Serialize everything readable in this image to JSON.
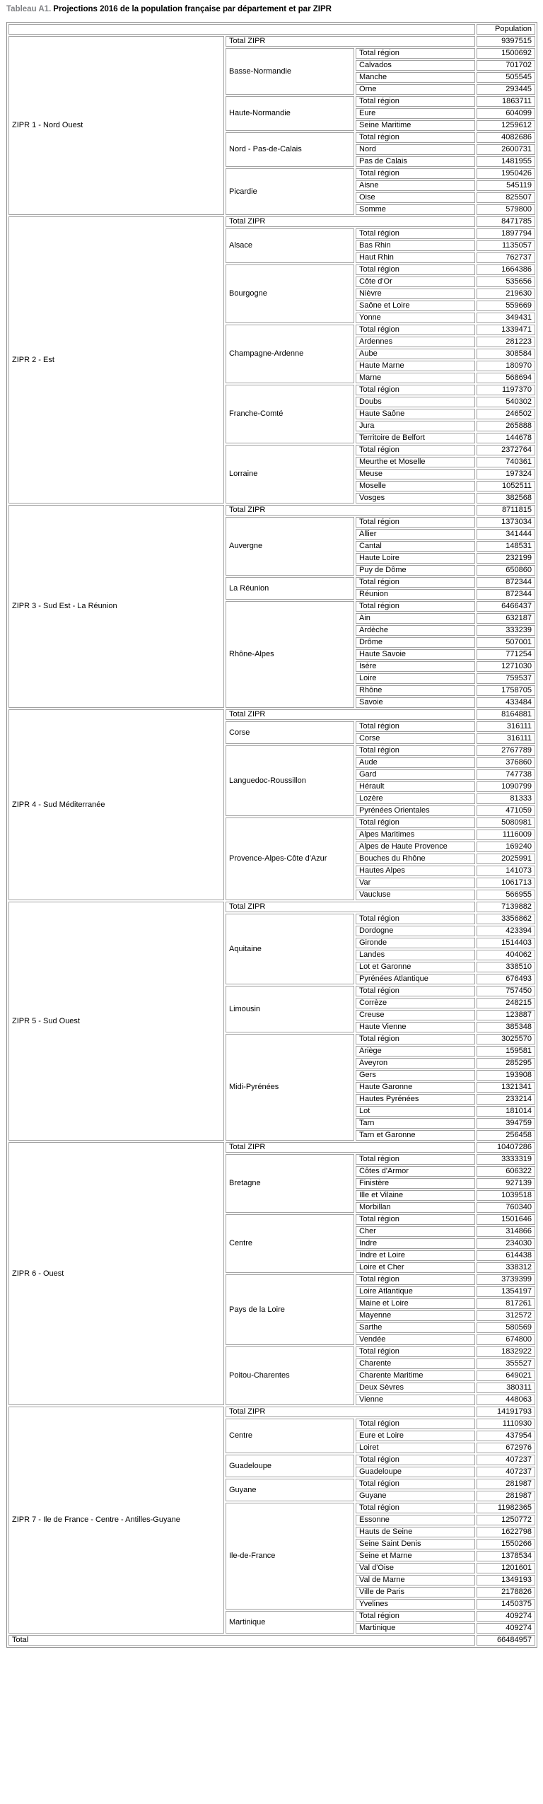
{
  "title": {
    "label": "Tableau A1.",
    "text": "Projections 2016 de la population française par département et par ZIPR"
  },
  "table": {
    "population_header": "Population",
    "total_zipr_label": "Total ZIPR",
    "total_region_label": "Total région",
    "grand_total_label": "Total",
    "grand_total_value": "66484957",
    "ziprs": [
      {
        "name": "ZIPR 1 - Nord Ouest",
        "total": "9397515",
        "regions": [
          {
            "name": "Basse-Normandie",
            "total": "1500692",
            "departments": [
              {
                "name": "Calvados",
                "value": "701702"
              },
              {
                "name": "Manche",
                "value": "505545"
              },
              {
                "name": "Orne",
                "value": "293445"
              }
            ]
          },
          {
            "name": "Haute-Normandie",
            "total": "1863711",
            "departments": [
              {
                "name": "Eure",
                "value": "604099"
              },
              {
                "name": "Seine Maritime",
                "value": "1259612"
              }
            ]
          },
          {
            "name": "Nord - Pas-de-Calais",
            "total": "4082686",
            "departments": [
              {
                "name": "Nord",
                "value": "2600731"
              },
              {
                "name": "Pas de Calais",
                "value": "1481955"
              }
            ]
          },
          {
            "name": "Picardie",
            "total": "1950426",
            "departments": [
              {
                "name": "Aisne",
                "value": "545119"
              },
              {
                "name": "Oise",
                "value": "825507"
              },
              {
                "name": "Somme",
                "value": "579800"
              }
            ]
          }
        ]
      },
      {
        "name": "ZIPR 2 - Est",
        "total": "8471785",
        "regions": [
          {
            "name": "Alsace",
            "total": "1897794",
            "departments": [
              {
                "name": "Bas Rhin",
                "value": "1135057"
              },
              {
                "name": "Haut Rhin",
                "value": "762737"
              }
            ]
          },
          {
            "name": "Bourgogne",
            "total": "1664386",
            "departments": [
              {
                "name": "Côte d'Or",
                "value": "535656"
              },
              {
                "name": "Nièvre",
                "value": "219630"
              },
              {
                "name": "Saône et Loire",
                "value": "559669"
              },
              {
                "name": "Yonne",
                "value": "349431"
              }
            ]
          },
          {
            "name": "Champagne-Ardenne",
            "total": "1339471",
            "departments": [
              {
                "name": "Ardennes",
                "value": "281223"
              },
              {
                "name": "Aube",
                "value": "308584"
              },
              {
                "name": "Haute Marne",
                "value": "180970"
              },
              {
                "name": "Marne",
                "value": "568694"
              }
            ]
          },
          {
            "name": "Franche-Comté",
            "total": "1197370",
            "departments": [
              {
                "name": "Doubs",
                "value": "540302"
              },
              {
                "name": "Haute Saône",
                "value": "246502"
              },
              {
                "name": "Jura",
                "value": "265888"
              },
              {
                "name": "Territoire de Belfort",
                "value": "144678"
              }
            ]
          },
          {
            "name": "Lorraine",
            "total": "2372764",
            "departments": [
              {
                "name": "Meurthe et Moselle",
                "value": "740361"
              },
              {
                "name": "Meuse",
                "value": "197324"
              },
              {
                "name": "Moselle",
                "value": "1052511"
              },
              {
                "name": "Vosges",
                "value": "382568"
              }
            ]
          }
        ]
      },
      {
        "name": "ZIPR 3 - Sud Est - La Réunion",
        "total": "8711815",
        "regions": [
          {
            "name": "Auvergne",
            "total": "1373034",
            "departments": [
              {
                "name": "Allier",
                "value": "341444"
              },
              {
                "name": "Cantal",
                "value": "148531"
              },
              {
                "name": "Haute Loire",
                "value": "232199"
              },
              {
                "name": "Puy de Dôme",
                "value": "650860"
              }
            ]
          },
          {
            "name": "La Réunion",
            "total": "872344",
            "departments": [
              {
                "name": "Réunion",
                "value": "872344"
              }
            ]
          },
          {
            "name": "Rhône-Alpes",
            "total": "6466437",
            "departments": [
              {
                "name": "Ain",
                "value": "632187"
              },
              {
                "name": "Ardèche",
                "value": "333239"
              },
              {
                "name": "Drôme",
                "value": "507001"
              },
              {
                "name": "Haute Savoie",
                "value": "771254"
              },
              {
                "name": "Isère",
                "value": "1271030"
              },
              {
                "name": "Loire",
                "value": "759537"
              },
              {
                "name": "Rhône",
                "value": "1758705"
              },
              {
                "name": "Savoie",
                "value": "433484"
              }
            ]
          }
        ]
      },
      {
        "name": "ZIPR 4 - Sud Méditerranée",
        "total": "8164881",
        "regions": [
          {
            "name": "Corse",
            "total": "316111",
            "departments": [
              {
                "name": "Corse",
                "value": "316111"
              }
            ]
          },
          {
            "name": "Languedoc-Roussillon",
            "total": "2767789",
            "departments": [
              {
                "name": "Aude",
                "value": "376860"
              },
              {
                "name": "Gard",
                "value": "747738"
              },
              {
                "name": "Hérault",
                "value": "1090799"
              },
              {
                "name": "Lozère",
                "value": "81333"
              },
              {
                "name": "Pyrénées Orientales",
                "value": "471059"
              }
            ]
          },
          {
            "name": "Provence-Alpes-Côte d'Azur",
            "total": "5080981",
            "departments": [
              {
                "name": "Alpes Maritimes",
                "value": "1116009"
              },
              {
                "name": "Alpes de Haute Provence",
                "value": "169240"
              },
              {
                "name": "Bouches du Rhône",
                "value": "2025991"
              },
              {
                "name": "Hautes Alpes",
                "value": "141073"
              },
              {
                "name": "Var",
                "value": "1061713"
              },
              {
                "name": "Vaucluse",
                "value": "566955"
              }
            ]
          }
        ]
      },
      {
        "name": "ZIPR 5 - Sud Ouest",
        "total": "7139882",
        "regions": [
          {
            "name": "Aquitaine",
            "total": "3356862",
            "departments": [
              {
                "name": "Dordogne",
                "value": "423394"
              },
              {
                "name": "Gironde",
                "value": "1514403"
              },
              {
                "name": "Landes",
                "value": "404062"
              },
              {
                "name": "Lot et Garonne",
                "value": "338510"
              },
              {
                "name": "Pyrénées Atlantique",
                "value": "676493"
              }
            ]
          },
          {
            "name": "Limousin",
            "total": "757450",
            "departments": [
              {
                "name": "Corrèze",
                "value": "248215"
              },
              {
                "name": "Creuse",
                "value": "123887"
              },
              {
                "name": "Haute Vienne",
                "value": "385348"
              }
            ]
          },
          {
            "name": "Midi-Pyrénées",
            "total": "3025570",
            "departments": [
              {
                "name": "Ariège",
                "value": "159581"
              },
              {
                "name": "Aveyron",
                "value": "285295"
              },
              {
                "name": "Gers",
                "value": "193908"
              },
              {
                "name": "Haute Garonne",
                "value": "1321341"
              },
              {
                "name": "Hautes Pyrénées",
                "value": "233214"
              },
              {
                "name": "Lot",
                "value": "181014"
              },
              {
                "name": "Tarn",
                "value": "394759"
              },
              {
                "name": "Tarn et Garonne",
                "value": "256458"
              }
            ]
          }
        ]
      },
      {
        "name": "ZIPR 6 - Ouest",
        "total": "10407286",
        "regions": [
          {
            "name": "Bretagne",
            "total": "3333319",
            "departments": [
              {
                "name": "Côtes d'Armor",
                "value": "606322"
              },
              {
                "name": "Finistère",
                "value": "927139"
              },
              {
                "name": "Ille et Vilaine",
                "value": "1039518"
              },
              {
                "name": "Morbillan",
                "value": "760340"
              }
            ]
          },
          {
            "name": "Centre",
            "total": "1501646",
            "departments": [
              {
                "name": "Cher",
                "value": "314866"
              },
              {
                "name": "Indre",
                "value": "234030"
              },
              {
                "name": "Indre et Loire",
                "value": "614438"
              },
              {
                "name": "Loire et Cher",
                "value": "338312"
              }
            ]
          },
          {
            "name": "Pays de la Loire",
            "total": "3739399",
            "departments": [
              {
                "name": "Loire Atlantique",
                "value": "1354197"
              },
              {
                "name": "Maine et Loire",
                "value": "817261"
              },
              {
                "name": "Mayenne",
                "value": "312572"
              },
              {
                "name": "Sarthe",
                "value": "580569"
              },
              {
                "name": "Vendée",
                "value": "674800"
              }
            ]
          },
          {
            "name": "Poitou-Charentes",
            "total": "1832922",
            "departments": [
              {
                "name": "Charente",
                "value": "355527"
              },
              {
                "name": "Charente Maritime",
                "value": "649021"
              },
              {
                "name": "Deux Sèvres",
                "value": "380311"
              },
              {
                "name": "Vienne",
                "value": "448063"
              }
            ]
          }
        ]
      },
      {
        "name": "ZIPR 7 - Ile de France - Centre - Antilles-Guyane",
        "total": "14191793",
        "regions": [
          {
            "name": "Centre",
            "total": "1110930",
            "departments": [
              {
                "name": "Eure et Loire",
                "value": "437954"
              },
              {
                "name": "Loiret",
                "value": "672976"
              }
            ]
          },
          {
            "name": "Guadeloupe",
            "total": "407237",
            "departments": [
              {
                "name": "Guadeloupe",
                "value": "407237"
              }
            ]
          },
          {
            "name": "Guyane",
            "total": "281987",
            "departments": [
              {
                "name": "Guyane",
                "value": "281987"
              }
            ]
          },
          {
            "name": "Ile-de-France",
            "total": "11982365",
            "departments": [
              {
                "name": "Essonne",
                "value": "1250772"
              },
              {
                "name": "Hauts de Seine",
                "value": "1622798"
              },
              {
                "name": "Seine Saint Denis",
                "value": "1550266"
              },
              {
                "name": "Seine et Marne",
                "value": "1378534"
              },
              {
                "name": "Val d'Oise",
                "value": "1201601"
              },
              {
                "name": "Val de Marne",
                "value": "1349193"
              },
              {
                "name": "Ville de Paris",
                "value": "2178826"
              },
              {
                "name": "Yvelines",
                "value": "1450375"
              }
            ]
          },
          {
            "name": "Martinique",
            "total": "409274",
            "departments": [
              {
                "name": "Martinique",
                "value": "409274"
              }
            ]
          }
        ]
      }
    ]
  }
}
